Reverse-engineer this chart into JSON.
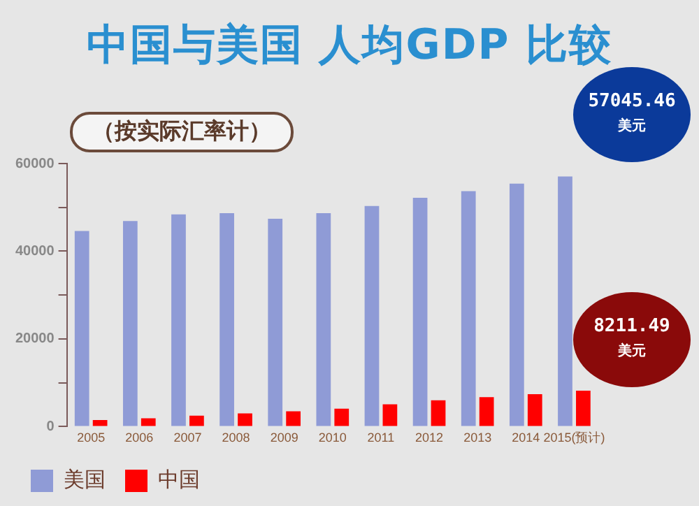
{
  "chart_data": {
    "type": "bar",
    "title": "中国与美国 人均GDP 比较",
    "subtitle": "（按实际汇率计）",
    "categories": [
      "2005",
      "2006",
      "2007",
      "2008",
      "2009",
      "2010",
      "2011",
      "2012",
      "2013",
      "2014",
      "2015(预计)"
    ],
    "series": [
      {
        "name": "美国",
        "color": "#8f9bd6",
        "values": [
          44600,
          46900,
          48400,
          48700,
          47400,
          48700,
          50300,
          52200,
          53700,
          55400,
          57045.46
        ]
      },
      {
        "name": "中国",
        "color": "#ff0000",
        "values": [
          1500,
          1900,
          2500,
          3000,
          3500,
          4100,
          5100,
          6000,
          6700,
          7400,
          8211.49
        ]
      }
    ],
    "ylim": [
      0,
      60000
    ],
    "yticks": [
      0,
      {
        "value": 10000,
        "label": null
      },
      20000,
      {
        "value": 30000,
        "label": null
      },
      40000,
      {
        "value": 50000,
        "label": null
      },
      60000
    ],
    "grid": false,
    "legend": "bottom left",
    "annotations": [
      {
        "text": "57045.46 美元",
        "x": "2015(预计)",
        "y": 57045.46
      },
      {
        "text": "8211.49 美元",
        "x": "2015(预计)",
        "y": 8211.49
      }
    ]
  }
}
